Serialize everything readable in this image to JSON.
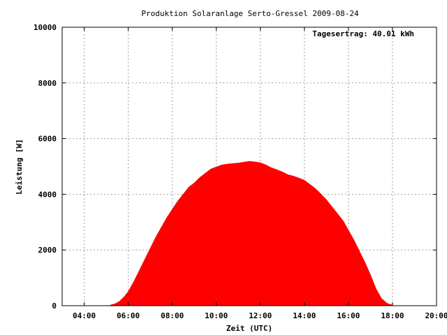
{
  "chart_data": {
    "type": "area",
    "title": "Produktion Solaranlage Serto-Gressel 2009-08-24",
    "xlabel": "Zeit (UTC)",
    "ylabel": "Leistung [W]",
    "annotation": "Tagesertrag: 40.01 kWh",
    "xlim": [
      3,
      20
    ],
    "ylim": [
      0,
      10000
    ],
    "x_ticks": [
      {
        "value": 4,
        "label": "04:00"
      },
      {
        "value": 6,
        "label": "06:00"
      },
      {
        "value": 8,
        "label": "08:00"
      },
      {
        "value": 10,
        "label": "10:00"
      },
      {
        "value": 12,
        "label": "12:00"
      },
      {
        "value": 14,
        "label": "14:00"
      },
      {
        "value": 16,
        "label": "16:00"
      },
      {
        "value": 18,
        "label": "18:00"
      },
      {
        "value": 20,
        "label": "20:00"
      }
    ],
    "y_ticks": [
      {
        "value": 0,
        "label": "0"
      },
      {
        "value": 2000,
        "label": "2000"
      },
      {
        "value": 4000,
        "label": "4000"
      },
      {
        "value": 6000,
        "label": "6000"
      },
      {
        "value": 8000,
        "label": "8000"
      },
      {
        "value": 10000,
        "label": "10000"
      }
    ],
    "grid": true,
    "color": "#ff0000",
    "series": [
      {
        "x": [
          5.2,
          5.4,
          5.6,
          5.8,
          6.0,
          6.25,
          6.5,
          6.75,
          7.0,
          7.25,
          7.5,
          7.75,
          8.0,
          8.25,
          8.5,
          8.75,
          9.0,
          9.25,
          9.5,
          9.75,
          10.0,
          10.25,
          10.5,
          10.75,
          11.0,
          11.25,
          11.5,
          11.75,
          12.0,
          12.25,
          12.5,
          12.75,
          13.0,
          13.25,
          13.5,
          13.75,
          14.0,
          14.25,
          14.5,
          14.75,
          15.0,
          15.25,
          15.5,
          15.75,
          16.0,
          16.25,
          16.5,
          16.75,
          17.0,
          17.25,
          17.5,
          17.75,
          18.0
        ],
        "y": [
          20,
          60,
          150,
          300,
          500,
          850,
          1250,
          1650,
          2050,
          2450,
          2800,
          3150,
          3450,
          3750,
          4000,
          4250,
          4400,
          4600,
          4750,
          4900,
          4980,
          5050,
          5080,
          5100,
          5120,
          5150,
          5180,
          5160,
          5130,
          5050,
          4950,
          4880,
          4800,
          4700,
          4650,
          4580,
          4500,
          4350,
          4200,
          4000,
          3800,
          3550,
          3300,
          3050,
          2700,
          2350,
          1950,
          1550,
          1100,
          600,
          250,
          80,
          20
        ]
      }
    ]
  }
}
